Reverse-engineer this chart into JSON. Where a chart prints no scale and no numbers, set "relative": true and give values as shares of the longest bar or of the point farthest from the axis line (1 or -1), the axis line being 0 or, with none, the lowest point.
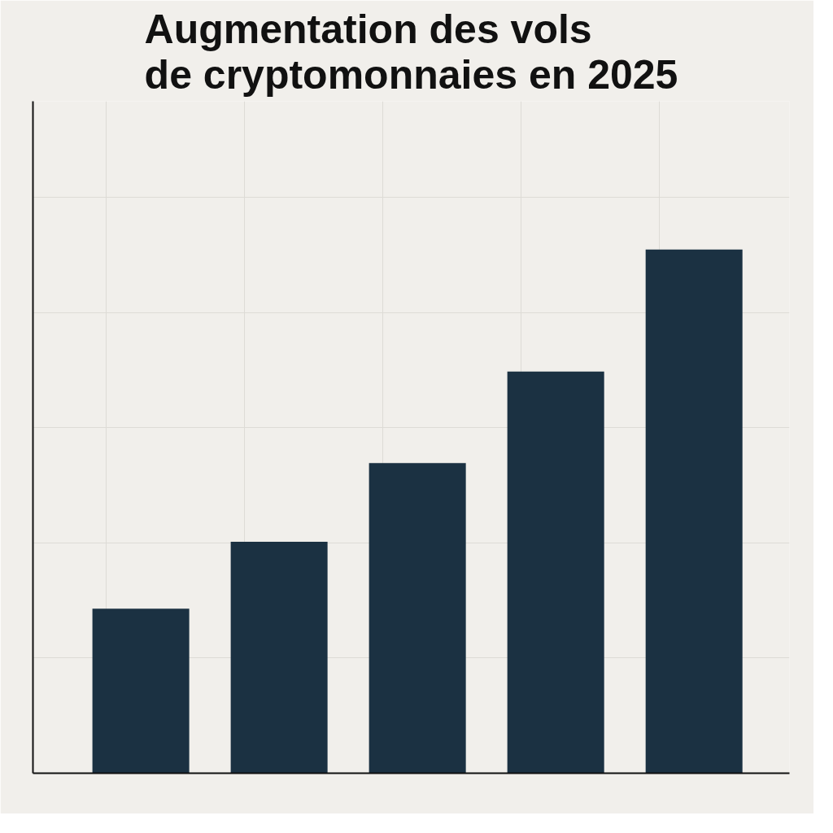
{
  "chart_data": {
    "type": "bar",
    "title": "Augmentation des vols de cryptomonnaies en 2025",
    "relative": true,
    "categories": [
      null,
      null,
      null,
      null,
      null
    ],
    "values": [
      0.314,
      0.442,
      0.592,
      0.767,
      1
    ],
    "color": "#1b3142",
    "grid": true
  }
}
